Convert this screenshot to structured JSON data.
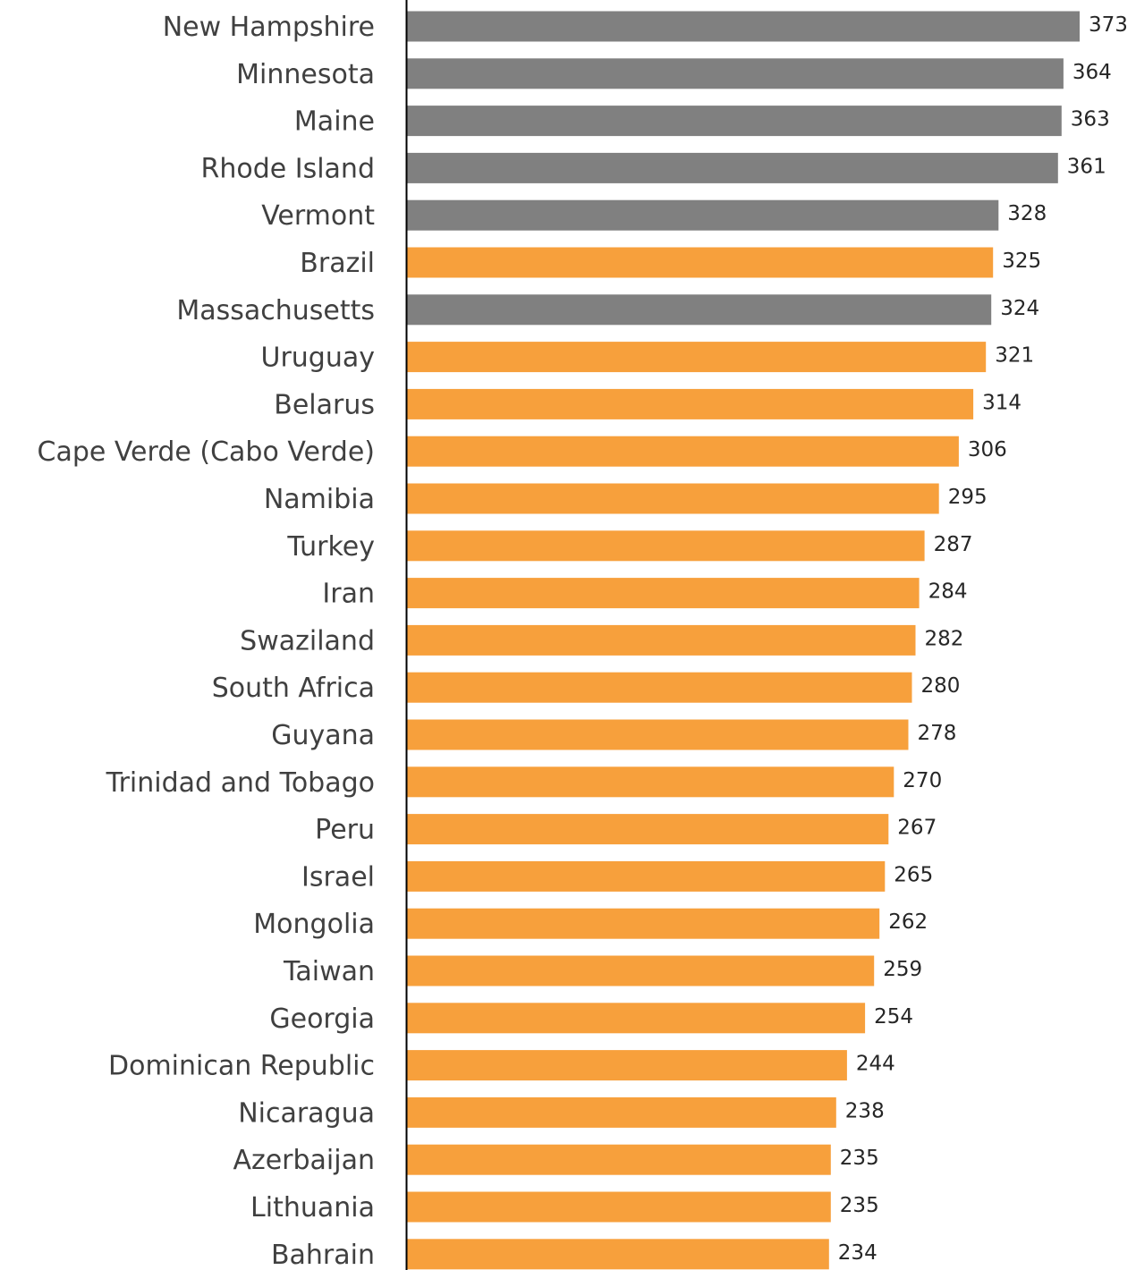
{
  "chart_data": {
    "type": "bar",
    "orientation": "horizontal",
    "categories": [
      "New Hampshire",
      "Minnesota",
      "Maine",
      "Rhode Island",
      "Vermont",
      "Brazil",
      "Massachusetts",
      "Uruguay",
      "Belarus",
      "Cape Verde (Cabo Verde)",
      "Namibia",
      "Turkey",
      "Iran",
      "Swaziland",
      "South Africa",
      "Guyana",
      "Trinidad and Tobago",
      "Peru",
      "Israel",
      "Mongolia",
      "Taiwan",
      "Georgia",
      "Dominican Republic",
      "Nicaragua",
      "Azerbaijan",
      "Lithuania",
      "Bahrain"
    ],
    "values": [
      373,
      364,
      363,
      361,
      328,
      325,
      324,
      321,
      314,
      306,
      295,
      287,
      284,
      282,
      280,
      278,
      270,
      267,
      265,
      262,
      259,
      254,
      244,
      238,
      235,
      235,
      234
    ],
    "groups": [
      "us_state",
      "us_state",
      "us_state",
      "us_state",
      "us_state",
      "country",
      "us_state",
      "country",
      "country",
      "country",
      "country",
      "country",
      "country",
      "country",
      "country",
      "country",
      "country",
      "country",
      "country",
      "country",
      "country",
      "country",
      "country",
      "country",
      "country",
      "country",
      "country"
    ],
    "colors": {
      "us_state": "#808080",
      "country": "#F7A03C",
      "axis": "#000000"
    },
    "title": "",
    "xlabel": "",
    "ylabel": "",
    "xlim": [
      0,
      373
    ],
    "grid": false,
    "legend": "none",
    "data_labels": true
  }
}
